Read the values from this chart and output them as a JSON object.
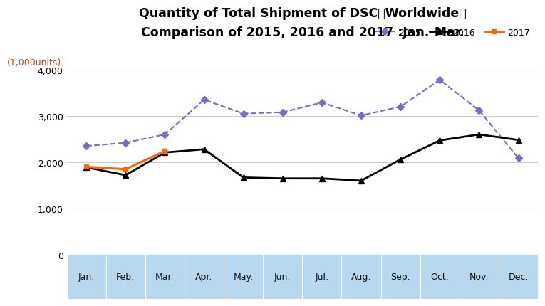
{
  "title_line1": "Quantity of Total Shipment of DSC［Worldwide］",
  "title_line2": "Comparison of 2015, 2016 and 2017 :Jan.-Mar.",
  "ylabel": "(1,000units)",
  "months": [
    "Jan.",
    "Feb.",
    "Mar.",
    "Apr.",
    "May.",
    "Jun.",
    "Jul.",
    "Aug.",
    "Sep.",
    "Oct.",
    "Nov.",
    "Dec."
  ],
  "data_2015": [
    2350,
    2420,
    2600,
    3350,
    3050,
    3080,
    3290,
    3010,
    3200,
    3780,
    3120,
    2090
  ],
  "data_2016": [
    1890,
    1720,
    2210,
    2280,
    1670,
    1650,
    1650,
    1600,
    2060,
    2470,
    2600,
    2480
  ],
  "data_2017": [
    1900,
    1850,
    2240
  ],
  "color_2015": "#7070cc",
  "color_2016": "#000000",
  "color_2017": "#ff6600",
  "ylim": [
    0,
    4000
  ],
  "yticks": [
    0,
    1000,
    2000,
    3000,
    4000
  ],
  "background_color": "#ffffff",
  "x_axis_bg": "#b8d8f0",
  "title_fontsize": 12.5,
  "tick_fontsize": 9,
  "legend_fontsize": 9,
  "ylabel_color": "#cc4400"
}
